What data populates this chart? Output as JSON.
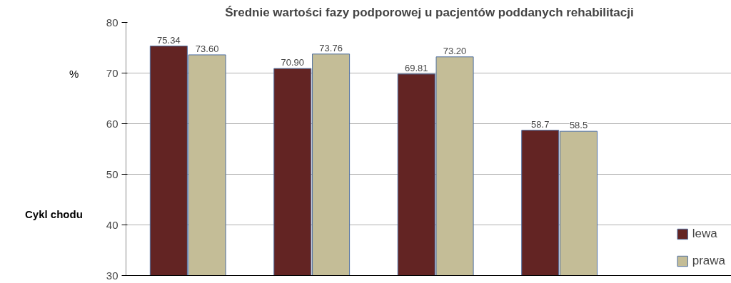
{
  "chart_data": {
    "type": "bar",
    "title": "Średnie wartości fazy podporowej u pacjentów poddanych rehabilitacji",
    "ylabel": "Cykl chodu",
    "annotations": [
      "%"
    ],
    "categories": [
      null,
      null,
      null,
      null
    ],
    "series": [
      {
        "name": "lewa",
        "color": "#632423",
        "values": [
          75.34,
          70.9,
          69.81,
          58.7
        ],
        "value_labels": [
          "75.34",
          "70.90",
          "69.81",
          "58.7"
        ]
      },
      {
        "name": "prawa",
        "color": "#c4bd97",
        "values": [
          73.6,
          73.76,
          73.2,
          58.5
        ],
        "value_labels": [
          "73.60",
          "73.76",
          "73.20",
          "58.5"
        ]
      }
    ],
    "ylim": [
      30,
      80
    ],
    "yticks": [
      30,
      40,
      50,
      60,
      70,
      80
    ],
    "grid": "y",
    "legend": "bottom right"
  }
}
